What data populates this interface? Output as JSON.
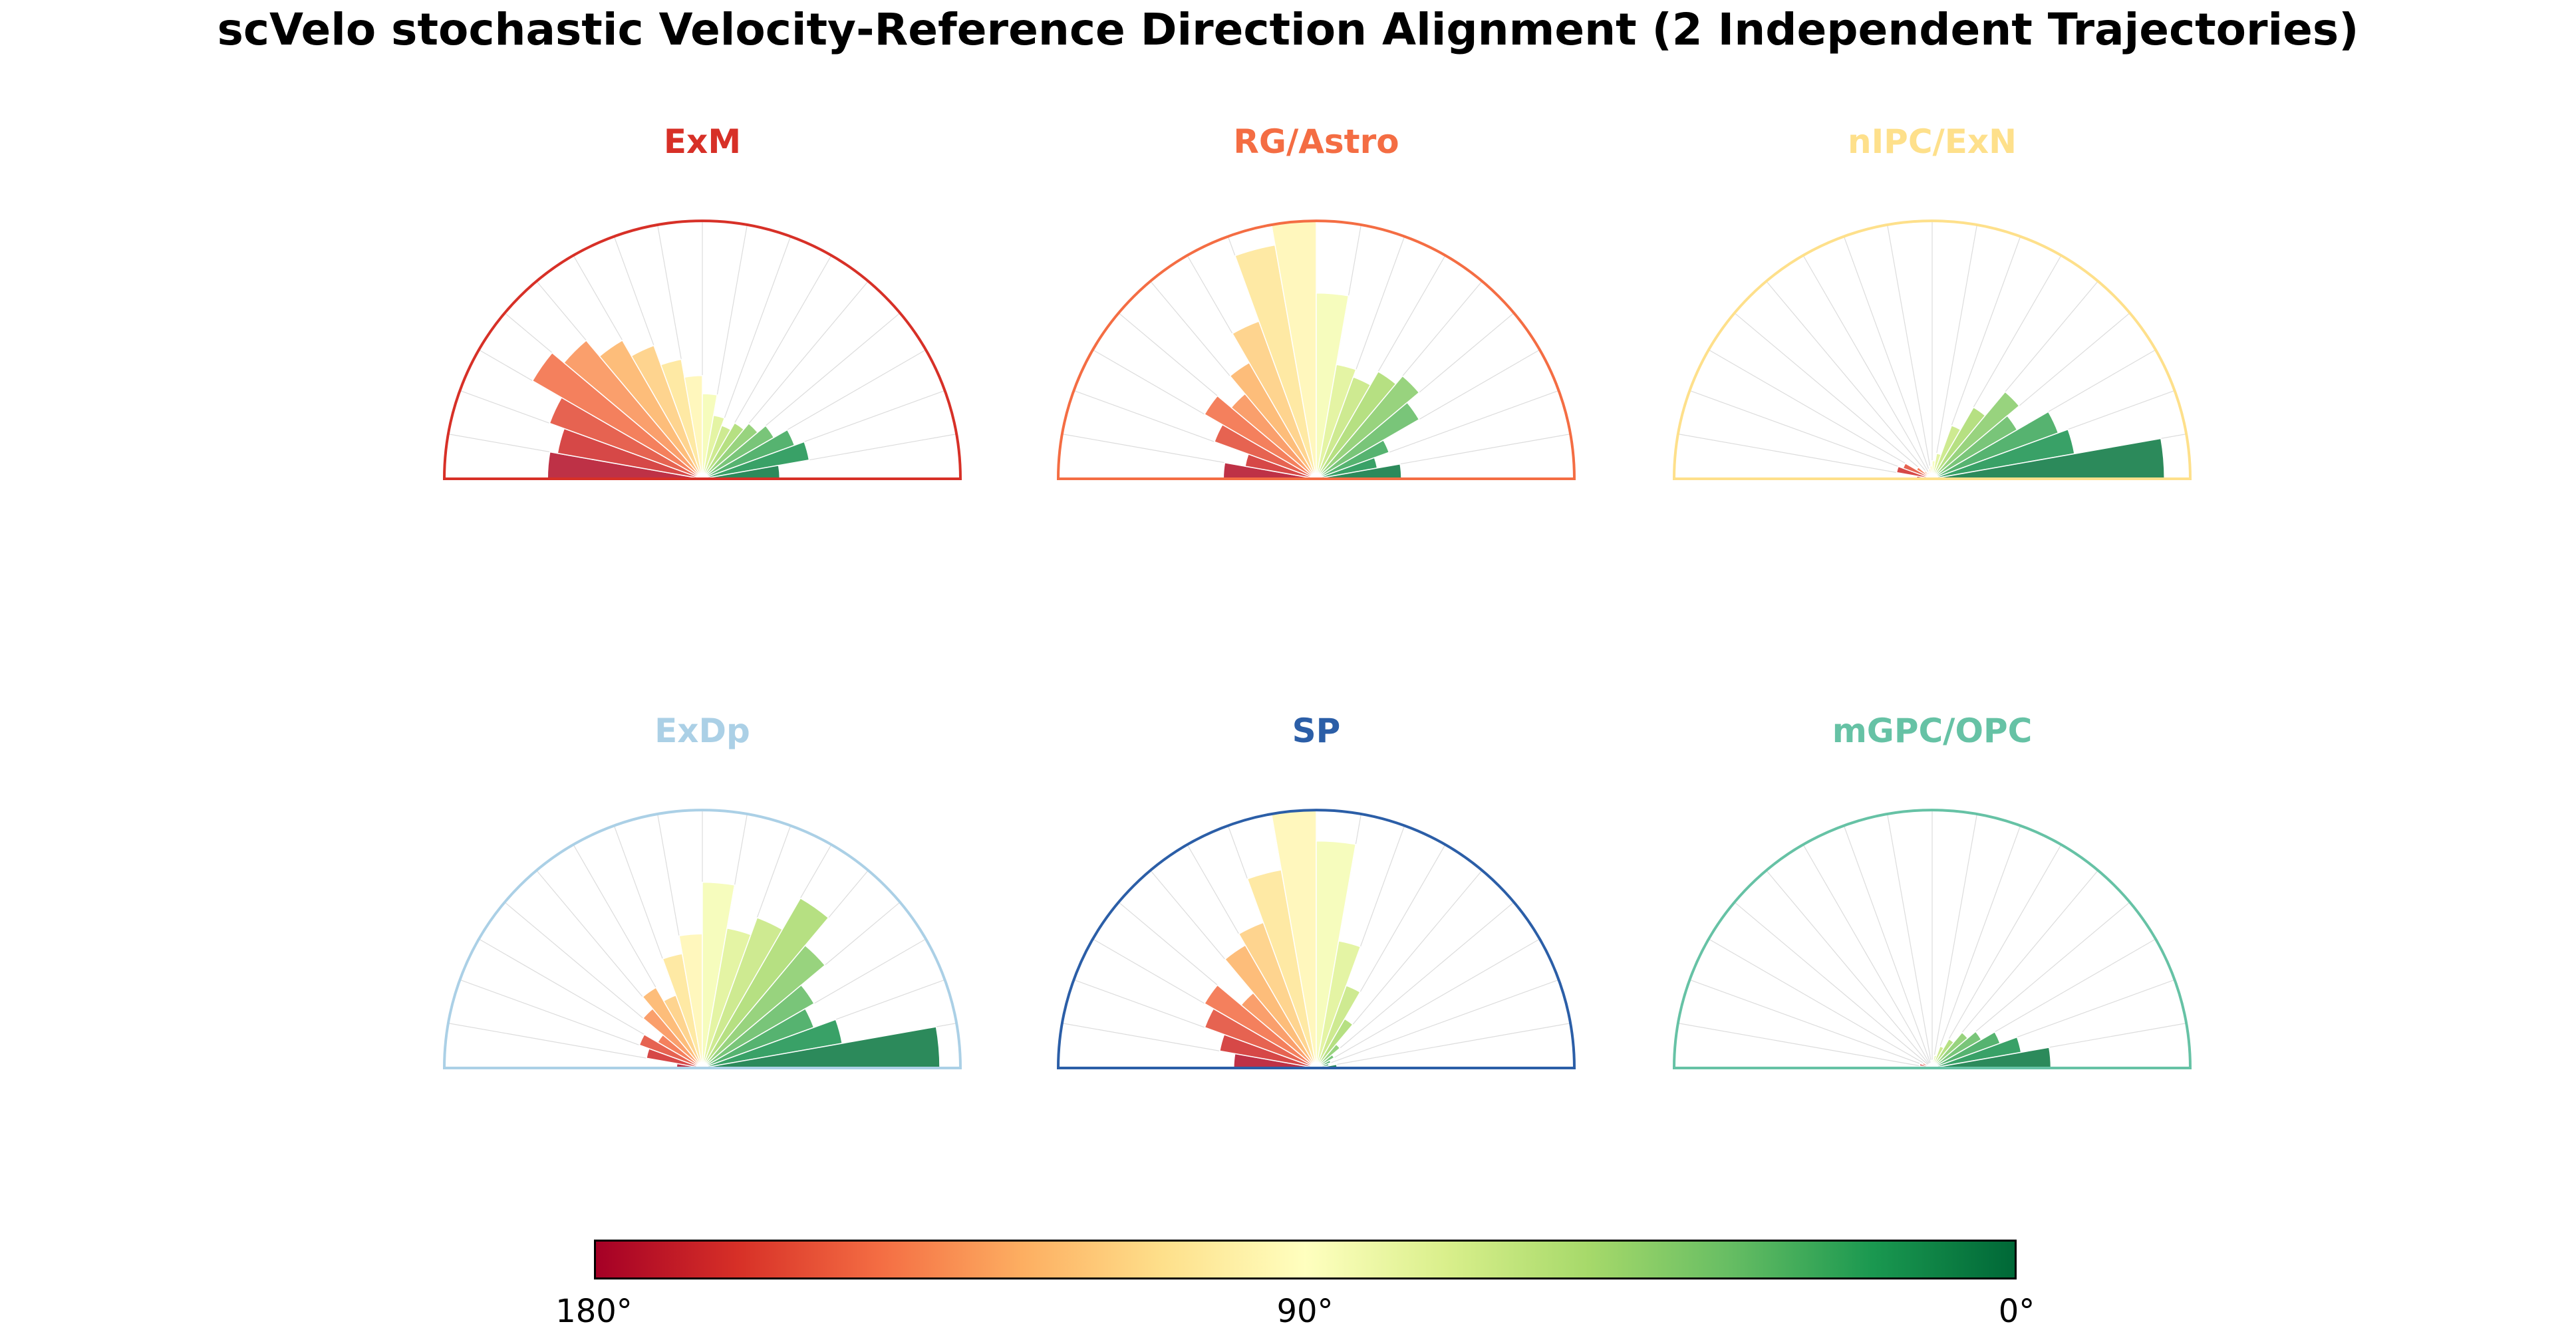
{
  "title": "scVelo stochastic Velocity-Reference Direction Alignment (2 Independent Trajectories)",
  "colorbar": {
    "labels": [
      "180°",
      "90°",
      "0°"
    ],
    "gradient_stops": [
      "#a50026",
      "#d73027",
      "#f46d43",
      "#fdae61",
      "#fee08b",
      "#ffffbf",
      "#d9ef8b",
      "#a6d96a",
      "#66bd63",
      "#1a9850",
      "#006837"
    ],
    "meaning": "angle between velocity and reference direction, 180° (red) to 0° (green)"
  },
  "chart_data": [
    {
      "type": "bar",
      "projection": "polar-half-rose",
      "name": "ExM",
      "title": "ExM",
      "title_color": "#d73027",
      "bin_width_deg": 10,
      "theta_range": [
        180,
        0
      ],
      "rlim": [
        0,
        1
      ],
      "grid": true,
      "categories": [
        175,
        165,
        155,
        145,
        135,
        125,
        115,
        105,
        95,
        85,
        75,
        65,
        55,
        45,
        35,
        25,
        15,
        5
      ],
      "values": [
        0.6,
        0.57,
        0.63,
        0.76,
        0.7,
        0.62,
        0.55,
        0.47,
        0.4,
        0.33,
        0.25,
        0.22,
        0.25,
        0.28,
        0.32,
        0.38,
        0.42,
        0.3
      ]
    },
    {
      "type": "bar",
      "projection": "polar-half-rose",
      "name": "RG-Astro",
      "title": "RG/Astro",
      "title_color": "#f46d43",
      "bin_width_deg": 10,
      "theta_range": [
        180,
        0
      ],
      "rlim": [
        0,
        1
      ],
      "grid": true,
      "categories": [
        175,
        165,
        155,
        145,
        135,
        125,
        115,
        105,
        95,
        85,
        75,
        65,
        55,
        45,
        35,
        25,
        15,
        5
      ],
      "values": [
        0.36,
        0.28,
        0.42,
        0.5,
        0.43,
        0.52,
        0.65,
        0.92,
        1.0,
        0.72,
        0.45,
        0.42,
        0.48,
        0.52,
        0.46,
        0.3,
        0.24,
        0.33
      ]
    },
    {
      "type": "bar",
      "projection": "polar-half-rose",
      "name": "nIPC-ExN",
      "title": "nIPC/ExN",
      "title_color": "#fee08b",
      "bin_width_deg": 10,
      "theta_range": [
        180,
        0
      ],
      "rlim": [
        0,
        1
      ],
      "grid": true,
      "categories": [
        175,
        165,
        155,
        145,
        135,
        125,
        115,
        105,
        95,
        85,
        75,
        65,
        55,
        45,
        35,
        25,
        15,
        5
      ],
      "values": [
        0.06,
        0.14,
        0.12,
        0.07,
        0.04,
        0.03,
        0.03,
        0.04,
        0.05,
        0.07,
        0.1,
        0.22,
        0.32,
        0.44,
        0.38,
        0.52,
        0.56,
        0.9
      ]
    },
    {
      "type": "bar",
      "projection": "polar-half-rose",
      "name": "ExDp",
      "title": "ExDp",
      "title_color": "#abd0e6",
      "bin_width_deg": 10,
      "theta_range": [
        180,
        0
      ],
      "rlim": [
        0,
        1
      ],
      "grid": true,
      "categories": [
        175,
        165,
        155,
        145,
        135,
        125,
        115,
        105,
        95,
        85,
        75,
        65,
        55,
        45,
        35,
        25,
        15,
        5
      ],
      "values": [
        0.1,
        0.22,
        0.26,
        0.2,
        0.3,
        0.36,
        0.3,
        0.45,
        0.52,
        0.72,
        0.55,
        0.62,
        0.76,
        0.62,
        0.5,
        0.46,
        0.55,
        0.92
      ]
    },
    {
      "type": "bar",
      "projection": "polar-half-rose",
      "name": "SP",
      "title": "SP",
      "title_color": "#2b5ea7",
      "bin_width_deg": 10,
      "theta_range": [
        180,
        0
      ],
      "rlim": [
        0,
        1
      ],
      "grid": true,
      "categories": [
        175,
        165,
        155,
        145,
        135,
        125,
        115,
        105,
        95,
        85,
        75,
        65,
        55,
        45,
        35,
        25,
        15,
        5
      ],
      "values": [
        0.32,
        0.38,
        0.46,
        0.5,
        0.38,
        0.55,
        0.6,
        0.78,
        1.0,
        0.88,
        0.5,
        0.34,
        0.22,
        0.12,
        0.08,
        0.06,
        0.05,
        0.08
      ]
    },
    {
      "type": "bar",
      "projection": "polar-half-rose",
      "name": "mGPC-OPC",
      "title": "mGPC/OPC",
      "title_color": "#66c2a5",
      "bin_width_deg": 10,
      "theta_range": [
        180,
        0
      ],
      "rlim": [
        0,
        1
      ],
      "grid": true,
      "categories": [
        175,
        165,
        155,
        145,
        135,
        125,
        115,
        105,
        95,
        85,
        75,
        65,
        55,
        45,
        35,
        25,
        15,
        5
      ],
      "values": [
        0.02,
        0.05,
        0.04,
        0.02,
        0.02,
        0.02,
        0.02,
        0.02,
        0.03,
        0.03,
        0.05,
        0.09,
        0.13,
        0.18,
        0.22,
        0.28,
        0.35,
        0.46
      ]
    }
  ]
}
